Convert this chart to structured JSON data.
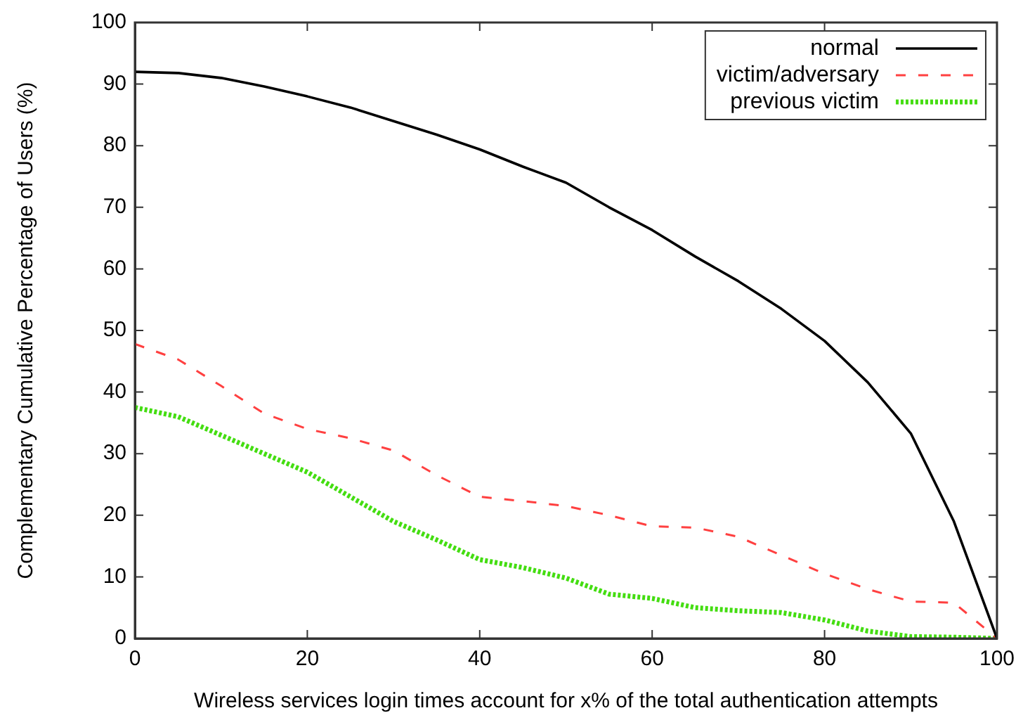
{
  "chart_data": {
    "type": "line",
    "xlabel": "Wireless services login times account for x% of the total authentication attempts",
    "ylabel": "Complementary Cumulative Percentage of Users (%)",
    "x": [
      0,
      5,
      10,
      15,
      20,
      25,
      30,
      35,
      40,
      45,
      50,
      55,
      60,
      65,
      70,
      75,
      80,
      85,
      90,
      95,
      100
    ],
    "series": [
      {
        "name": "normal",
        "color": "#000000",
        "line_style": "solid",
        "values": [
          92,
          91.8,
          91,
          89.6,
          88,
          86.2,
          84,
          81.8,
          79.4,
          76.6,
          74,
          70,
          66.3,
          62,
          58,
          53.5,
          48.3,
          41.6,
          33.3,
          19,
          0
        ]
      },
      {
        "name": "victim/adversary",
        "color": "#ff4040",
        "line_style": "dashed",
        "values": [
          47.8,
          45.3,
          41,
          36.5,
          34,
          32.5,
          30.5,
          26.5,
          23,
          22.3,
          21.5,
          20,
          18.2,
          18,
          16.5,
          13.5,
          10.5,
          8,
          6,
          5.8,
          0
        ]
      },
      {
        "name": "previous victim",
        "color": "#44dd11",
        "line_style": "dotted",
        "values": [
          37.5,
          36,
          33,
          30,
          27,
          23,
          19,
          16,
          12.8,
          11.5,
          9.8,
          7.2,
          6.5,
          5,
          4.5,
          4.2,
          3,
          1.2,
          0.3,
          0.2,
          0
        ]
      }
    ],
    "xlim": [
      0,
      100
    ],
    "xticks": [
      0,
      20,
      40,
      60,
      80,
      100
    ],
    "ylim": [
      0,
      100
    ],
    "yticks": [
      0,
      10,
      20,
      30,
      40,
      50,
      60,
      70,
      80,
      90,
      100
    ],
    "grid": false,
    "legend": "top right",
    "marker": "none"
  }
}
